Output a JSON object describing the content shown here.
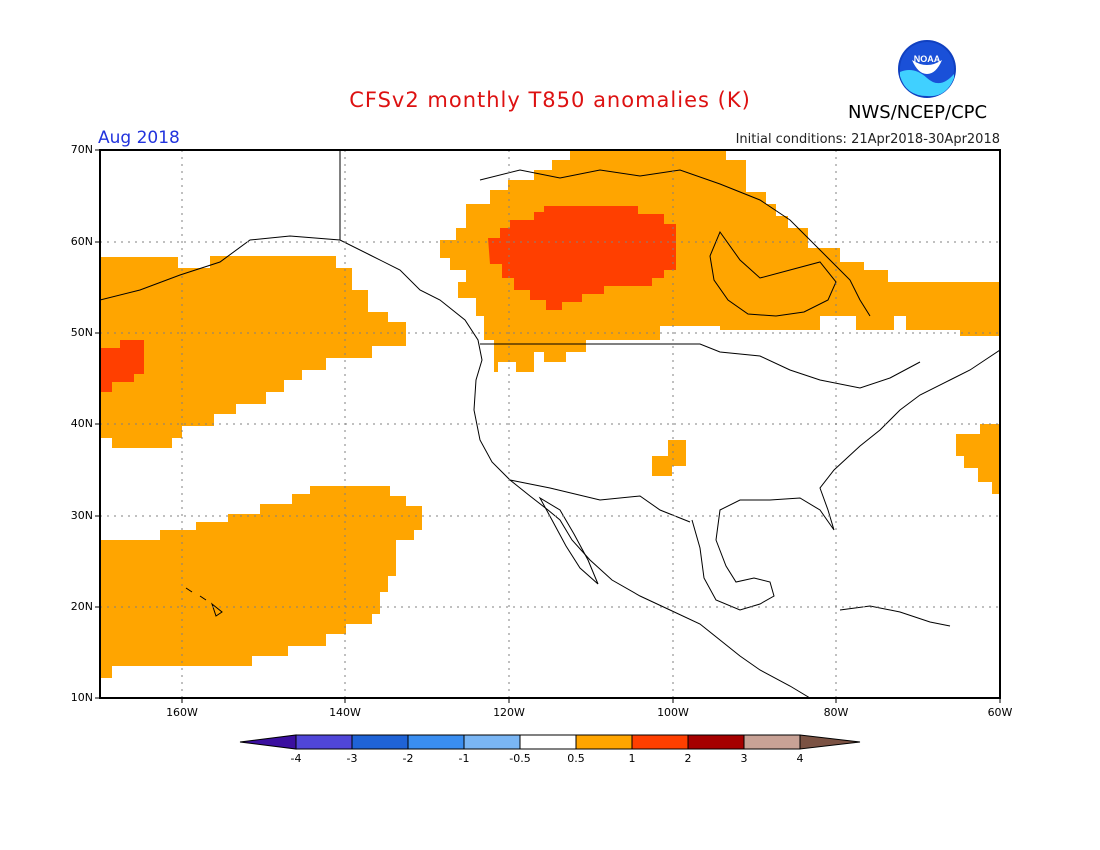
{
  "header": {
    "title": "CFSv2 monthly T850 anomalies (K)",
    "period": "Aug 2018",
    "initial_conditions": "Initial conditions: 21Apr2018-30Apr2018",
    "agency": "NWS/NCEP/CPC",
    "logo_text": "NOAA"
  },
  "colors": {
    "title": "#dd1111",
    "period": "#2233dd",
    "anom_0_5_1": "#ffa500",
    "anom_1_2": "#ff3f00",
    "anom_2_3": "#a50000",
    "anom_3_4": "#c8a296"
  },
  "map": {
    "lat_labels": [
      "70N",
      "60N",
      "50N",
      "40N",
      "30N",
      "20N",
      "10N"
    ],
    "lon_labels": [
      "160W",
      "140W",
      "120W",
      "100W",
      "80W",
      "60W"
    ]
  },
  "colorbar": {
    "ticks": [
      "-4",
      "-3",
      "-2",
      "-1",
      "-0.5",
      "0.5",
      "1",
      "2",
      "3",
      "4"
    ],
    "colors": [
      "#3b0fa0",
      "#5046d8",
      "#1f63d6",
      "#3a8ef0",
      "#7ab6f4",
      "#ffffff",
      "#ffa500",
      "#ff3f00",
      "#a50000",
      "#c8a296",
      "#7b5243"
    ]
  }
}
